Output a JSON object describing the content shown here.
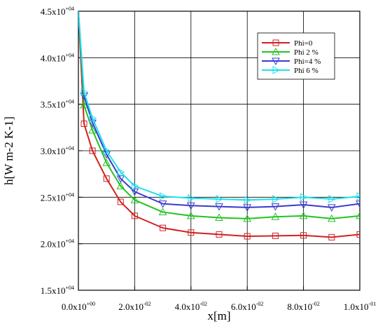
{
  "chart_data": {
    "type": "line",
    "title": "",
    "xlabel": "x[m]",
    "ylabel": "h[W m-2 K-1]",
    "xlim": [
      0,
      0.1
    ],
    "ylim": [
      15000,
      45000
    ],
    "grid": true,
    "legend_position": "top-right",
    "x_ticks": [
      {
        "value": 0.0,
        "mantissa": "0.0x10",
        "exp": "+00"
      },
      {
        "value": 0.02,
        "mantissa": "2.0x10",
        "exp": "-02"
      },
      {
        "value": 0.04,
        "mantissa": "4.0x10",
        "exp": "-02"
      },
      {
        "value": 0.06,
        "mantissa": "6.0x10",
        "exp": "-02"
      },
      {
        "value": 0.08,
        "mantissa": "8.0x10",
        "exp": "-02"
      },
      {
        "value": 0.1,
        "mantissa": "1.0x10",
        "exp": "-01"
      }
    ],
    "y_ticks": [
      {
        "value": 15000,
        "mantissa": "1.5x10",
        "exp": "+04"
      },
      {
        "value": 20000,
        "mantissa": "2.0x10",
        "exp": "+04"
      },
      {
        "value": 25000,
        "mantissa": "2.5x10",
        "exp": "+04"
      },
      {
        "value": 30000,
        "mantissa": "3.0x10",
        "exp": "+04"
      },
      {
        "value": 35000,
        "mantissa": "3.5x10",
        "exp": "+04"
      },
      {
        "value": 40000,
        "mantissa": "4.0x10",
        "exp": "+04"
      },
      {
        "value": 45000,
        "mantissa": "4.5x10",
        "exp": "+04"
      }
    ],
    "x_gridlines": [
      0.02,
      0.04,
      0.06,
      0.08
    ],
    "y_gridlines": [
      20000,
      25000,
      30000,
      35000,
      40000
    ],
    "x": [
      0.0,
      0.002,
      0.005,
      0.01,
      0.015,
      0.02,
      0.03,
      0.04,
      0.05,
      0.06,
      0.07,
      0.08,
      0.09,
      0.1
    ],
    "series": [
      {
        "name": "Phi=0",
        "color": "#d42020",
        "marker": "square",
        "values": [
          45000,
          32900,
          30000,
          27000,
          24500,
          23000,
          21700,
          21200,
          21000,
          20800,
          20850,
          20900,
          20700,
          21000
        ]
      },
      {
        "name": "Phi 2 %",
        "color": "#22c322",
        "marker": "triangle-up",
        "values": [
          45000,
          34900,
          32200,
          28700,
          26200,
          24700,
          23400,
          23000,
          22800,
          22700,
          22900,
          23000,
          22700,
          23000
        ]
      },
      {
        "name": "Phi=4 %",
        "color": "#3a3ad0",
        "marker": "triangle-down",
        "values": [
          45000,
          35900,
          33000,
          29600,
          27000,
          25600,
          24300,
          24100,
          24000,
          23900,
          24000,
          24200,
          23900,
          24300
        ]
      },
      {
        "name": "Phi 6 %",
        "color": "#1ee0ee",
        "marker": "triangle-right",
        "values": [
          45000,
          36300,
          33500,
          30000,
          27700,
          26200,
          25100,
          24900,
          24800,
          24700,
          24800,
          25000,
          24800,
          25100
        ]
      }
    ],
    "marker_x": [
      0.002,
      0.005,
      0.01,
      0.015,
      0.02,
      0.03,
      0.04,
      0.05,
      0.06,
      0.07,
      0.08,
      0.09,
      0.1
    ]
  }
}
